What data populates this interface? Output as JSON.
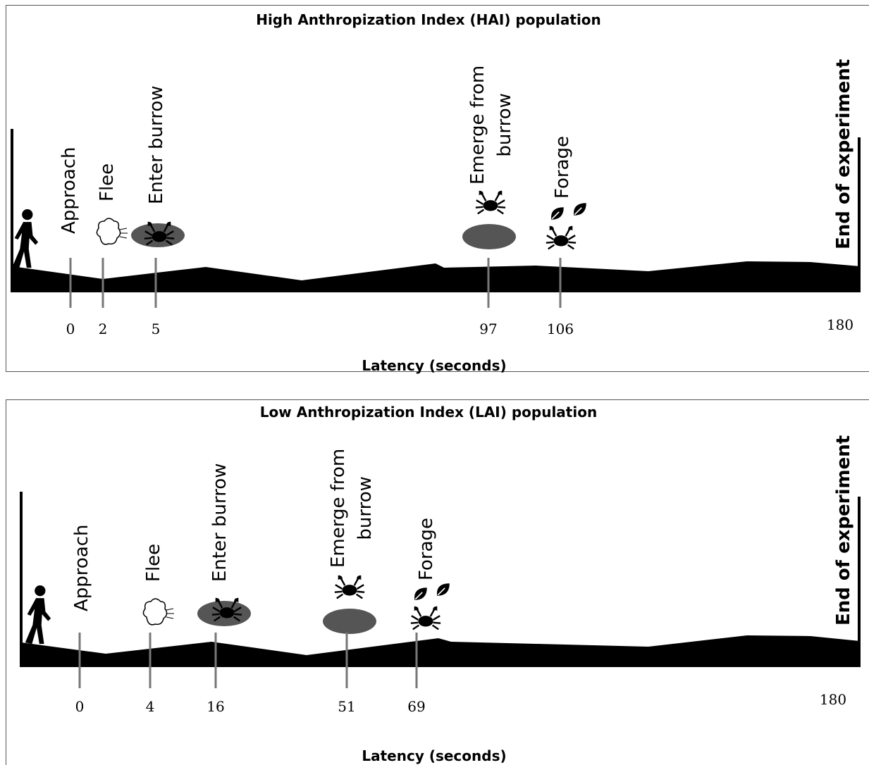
{
  "panels": [
    {
      "title": "High Anthropization Index (HAI) population",
      "events": [
        {
          "label": [
            "Approach"
          ],
          "latency": 0
        },
        {
          "label": [
            "Flee"
          ],
          "latency": 2
        },
        {
          "label": [
            "Enter burrow"
          ],
          "latency": 5
        },
        {
          "label": [
            "Emerge from",
            "burrow"
          ],
          "latency": 97
        },
        {
          "label": [
            "Forage"
          ],
          "latency": 106
        }
      ],
      "end_label": "End of experiment",
      "end_latency": 180,
      "axis_label": "Latency (seconds)"
    },
    {
      "title": "Low Anthropization Index (LAI) population",
      "events": [
        {
          "label": [
            "Approach"
          ],
          "latency": 0
        },
        {
          "label": [
            "Flee"
          ],
          "latency": 4
        },
        {
          "label": [
            "Enter burrow"
          ],
          "latency": 16
        },
        {
          "label": [
            "Emerge from",
            "burrow"
          ],
          "latency": 51
        },
        {
          "label": [
            "Forage"
          ],
          "latency": 69
        }
      ],
      "end_label": "End of experiment",
      "end_latency": 180,
      "axis_label": "Latency (seconds)"
    }
  ]
}
